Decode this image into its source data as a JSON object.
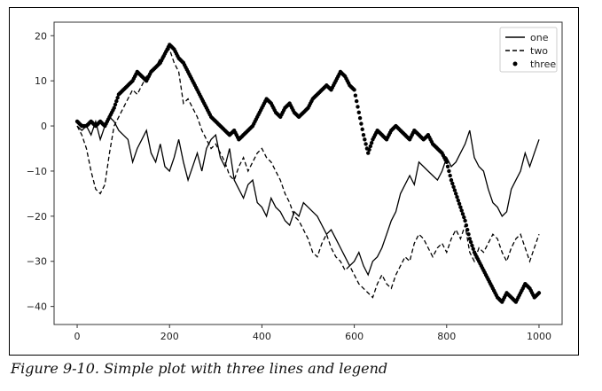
{
  "caption": "Figure 9-10. Simple plot with three lines and legend",
  "chart_data": {
    "type": "line",
    "title": "",
    "xlabel": "",
    "ylabel": "",
    "xlim": [
      -50,
      1050
    ],
    "ylim": [
      -44,
      23
    ],
    "xticks": [
      0,
      200,
      400,
      600,
      800,
      1000
    ],
    "yticks": [
      20,
      10,
      0,
      -10,
      -20,
      -30,
      -40
    ],
    "grid": false,
    "legend_position": "top-right",
    "colors": {
      "line": "#000000",
      "axes": "#333333",
      "background": "#ffffff"
    },
    "series": [
      {
        "name": "one",
        "style": "solid",
        "x": [
          0,
          10,
          20,
          30,
          40,
          50,
          60,
          70,
          80,
          90,
          100,
          110,
          120,
          130,
          140,
          150,
          160,
          170,
          180,
          190,
          200,
          210,
          220,
          230,
          240,
          250,
          260,
          270,
          280,
          290,
          300,
          310,
          320,
          330,
          340,
          350,
          360,
          370,
          380,
          390,
          400,
          410,
          420,
          430,
          440,
          450,
          460,
          470,
          480,
          490,
          500,
          510,
          520,
          530,
          540,
          550,
          560,
          570,
          580,
          590,
          600,
          610,
          620,
          630,
          640,
          650,
          660,
          670,
          680,
          690,
          700,
          710,
          720,
          730,
          740,
          750,
          760,
          770,
          780,
          790,
          800,
          810,
          820,
          830,
          840,
          850,
          860,
          870,
          880,
          890,
          900,
          910,
          920,
          930,
          940,
          950,
          960,
          970,
          980,
          990,
          1000
        ],
        "values": [
          0,
          -1,
          0,
          -2,
          1,
          -3,
          0,
          2,
          1,
          -1,
          -2,
          -3,
          -8,
          -5,
          -3,
          -1,
          -6,
          -8,
          -4,
          -9,
          -10,
          -7,
          -3,
          -8,
          -12,
          -9,
          -6,
          -10,
          -5,
          -3,
          -2,
          -7,
          -9,
          -5,
          -12,
          -14,
          -16,
          -13,
          -12,
          -17,
          -18,
          -20,
          -16,
          -18,
          -19,
          -21,
          -22,
          -19,
          -20,
          -17,
          -18,
          -19,
          -20,
          -22,
          -24,
          -23,
          -25,
          -27,
          -29,
          -31,
          -30,
          -28,
          -31,
          -33,
          -30,
          -29,
          -27,
          -24,
          -21,
          -19,
          -15,
          -13,
          -11,
          -13,
          -8,
          -9,
          -10,
          -11,
          -12,
          -10,
          -7,
          -9,
          -8,
          -6,
          -4,
          -1,
          -7,
          -9,
          -10,
          -14,
          -17,
          -18,
          -20,
          -19,
          -14,
          -12,
          -10,
          -6,
          -9,
          -6,
          -3
        ]
      },
      {
        "name": "two",
        "style": "dashed",
        "x": [
          0,
          10,
          20,
          30,
          40,
          50,
          60,
          70,
          80,
          90,
          100,
          110,
          120,
          130,
          140,
          150,
          160,
          170,
          180,
          190,
          200,
          210,
          220,
          230,
          240,
          250,
          260,
          270,
          280,
          290,
          300,
          310,
          320,
          330,
          340,
          350,
          360,
          370,
          380,
          390,
          400,
          410,
          420,
          430,
          440,
          450,
          460,
          470,
          480,
          490,
          500,
          510,
          520,
          530,
          540,
          550,
          560,
          570,
          580,
          590,
          600,
          610,
          620,
          630,
          640,
          650,
          660,
          670,
          680,
          690,
          700,
          710,
          720,
          730,
          740,
          750,
          760,
          770,
          780,
          790,
          800,
          810,
          820,
          830,
          840,
          850,
          860,
          870,
          880,
          890,
          900,
          910,
          920,
          930,
          940,
          950,
          960,
          970,
          980,
          990,
          1000
        ],
        "values": [
          0,
          -2,
          -5,
          -10,
          -14,
          -15,
          -13,
          -6,
          0,
          2,
          4,
          6,
          8,
          7,
          9,
          11,
          12,
          13,
          15,
          16,
          17,
          14,
          12,
          5,
          6,
          4,
          2,
          -1,
          -3,
          -5,
          -4,
          -6,
          -8,
          -11,
          -12,
          -9,
          -7,
          -10,
          -8,
          -6,
          -5,
          -7,
          -8,
          -10,
          -12,
          -15,
          -17,
          -20,
          -21,
          -23,
          -25,
          -28,
          -29,
          -26,
          -24,
          -27,
          -29,
          -30,
          -32,
          -31,
          -33,
          -35,
          -36,
          -37,
          -38,
          -35,
          -33,
          -35,
          -36,
          -33,
          -31,
          -29,
          -30,
          -26,
          -24,
          -25,
          -27,
          -29,
          -27,
          -26,
          -28,
          -25,
          -23,
          -25,
          -22,
          -28,
          -30,
          -27,
          -28,
          -26,
          -24,
          -25,
          -28,
          -30,
          -27,
          -25,
          -24,
          -27,
          -30,
          -27,
          -24
        ]
      },
      {
        "name": "three",
        "style": "dots",
        "x": [
          0,
          10,
          20,
          30,
          40,
          50,
          60,
          70,
          80,
          90,
          100,
          110,
          120,
          130,
          140,
          150,
          160,
          170,
          180,
          190,
          200,
          210,
          220,
          230,
          240,
          250,
          260,
          270,
          280,
          290,
          300,
          310,
          320,
          330,
          340,
          350,
          360,
          370,
          380,
          390,
          400,
          410,
          420,
          430,
          440,
          450,
          460,
          470,
          480,
          490,
          500,
          510,
          520,
          530,
          540,
          550,
          560,
          570,
          580,
          590,
          600,
          610,
          620,
          630,
          640,
          650,
          660,
          670,
          680,
          690,
          700,
          710,
          720,
          730,
          740,
          750,
          760,
          770,
          780,
          790,
          800,
          810,
          820,
          830,
          840,
          850,
          860,
          870,
          880,
          890,
          900,
          910,
          920,
          930,
          940,
          950,
          960,
          970,
          980,
          990,
          1000
        ],
        "values": [
          1,
          0,
          0,
          1,
          0,
          1,
          0,
          2,
          4,
          7,
          8,
          9,
          10,
          12,
          11,
          10,
          12,
          13,
          14,
          16,
          18,
          17,
          15,
          14,
          12,
          10,
          8,
          6,
          4,
          2,
          1,
          0,
          -1,
          -2,
          -1,
          -3,
          -2,
          -1,
          0,
          2,
          4,
          6,
          5,
          3,
          2,
          4,
          5,
          3,
          2,
          3,
          4,
          6,
          7,
          8,
          9,
          8,
          10,
          12,
          11,
          9,
          8,
          3,
          -2,
          -6,
          -3,
          -1,
          -2,
          -3,
          -1,
          0,
          -1,
          -2,
          -3,
          -1,
          -2,
          -3,
          -2,
          -4,
          -5,
          -6,
          -8,
          -12,
          -15,
          -18,
          -21,
          -25,
          -28,
          -30,
          -32,
          -34,
          -36,
          -38,
          -39,
          -37,
          -38,
          -39,
          -37,
          -35,
          -36,
          -38,
          -37
        ]
      }
    ]
  }
}
